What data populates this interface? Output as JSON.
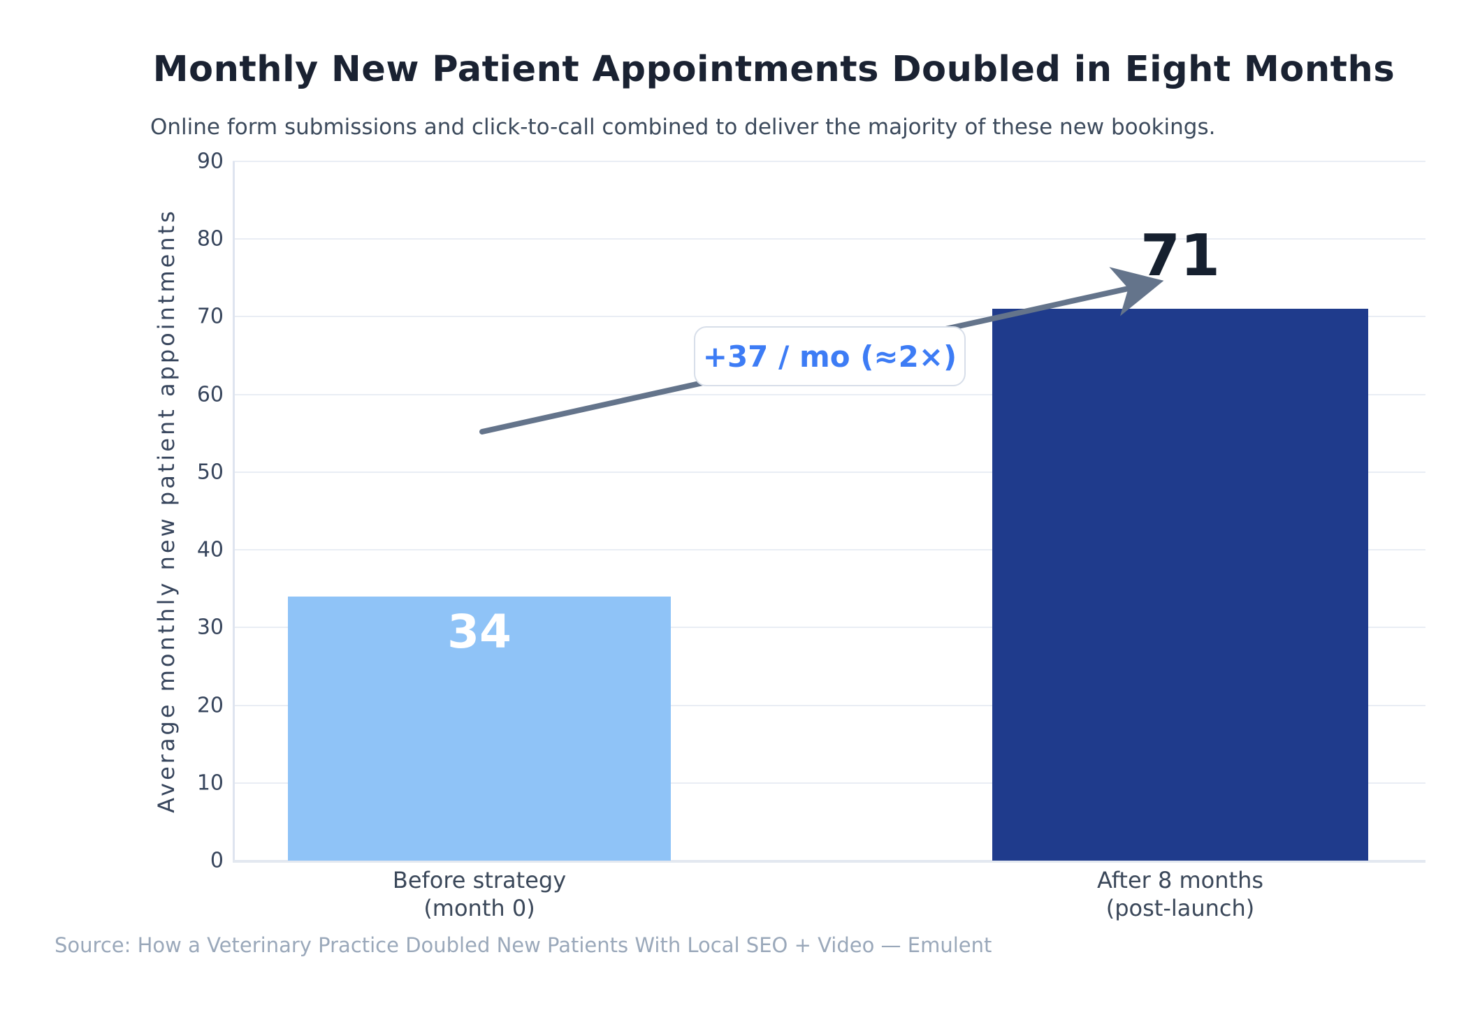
{
  "page": {
    "title": "Monthly New Patient Appointments Doubled in Eight Months",
    "subtitle": "Online form submissions and click-to-call combined to deliver the majority of these new bookings.",
    "source": "Source: How a Veterinary Practice Doubled New Patients With Local SEO + Video — Emulent"
  },
  "chart_data": {
    "type": "bar",
    "title": "Monthly New Patient Appointments Doubled in Eight Months",
    "subtitle": "Online form submissions and click-to-call combined to deliver the majority of these new bookings.",
    "xlabel": "",
    "ylabel": "Average monthly new patient appointments",
    "ylim": [
      0,
      90
    ],
    "yticks": [
      0,
      10,
      20,
      30,
      40,
      50,
      60,
      70,
      80,
      90
    ],
    "grid": true,
    "legend": "none",
    "categories": [
      "Before strategy (month 0)",
      "After 8 months (post-launch)"
    ],
    "x_tick_lines": [
      [
        "Before strategy",
        "(month 0)"
      ],
      [
        "After 8 months",
        "(post-launch)"
      ]
    ],
    "values": [
      34,
      71
    ],
    "value_labels": [
      "34",
      "71"
    ],
    "value_label_inside": [
      true,
      false
    ],
    "bar_colors": [
      "#8FC3F7",
      "#1F3B8C"
    ],
    "value_label_colors": [
      "#FFFFFF",
      "#16202F"
    ],
    "annotation": {
      "text": "+37 / mo (≈2×)",
      "arrow_from": {
        "category_index": 0,
        "value": 55
      },
      "arrow_to": {
        "category_index": 1,
        "value": 74.5
      }
    },
    "source": "Source: How a Veterinary Practice Doubled New Patients With Local SEO + Video — Emulent"
  },
  "colors": {
    "title": "#1A2232",
    "subtitle": "#3C4A5C",
    "axis_text": "#37455C",
    "grid": "#E9EDF4",
    "arrow": "#64748B",
    "annotation_text": "#3D7CF5",
    "source": "#9AA8BA",
    "bar_before": "#8FC3F7",
    "bar_after": "#1F3B8C"
  }
}
